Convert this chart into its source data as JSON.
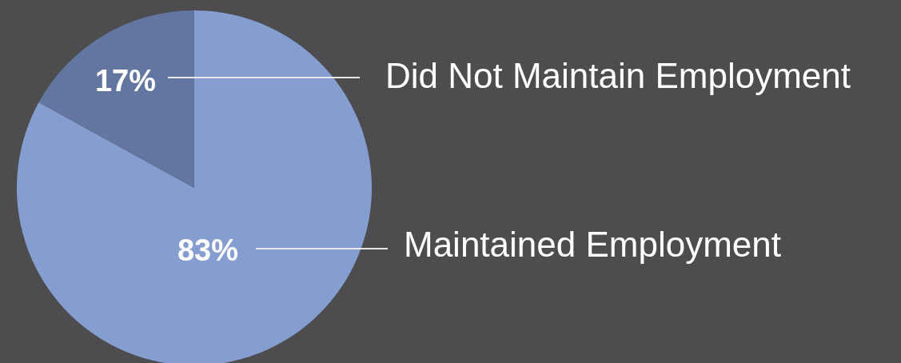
{
  "chart_data": {
    "type": "pie",
    "categories": [
      "Maintained Employment",
      "Did Not Maintain Employment"
    ],
    "values": [
      83,
      17
    ],
    "colors": [
      "#869dd0",
      "#63769f"
    ],
    "value_labels": [
      "83%",
      "17%"
    ]
  }
}
